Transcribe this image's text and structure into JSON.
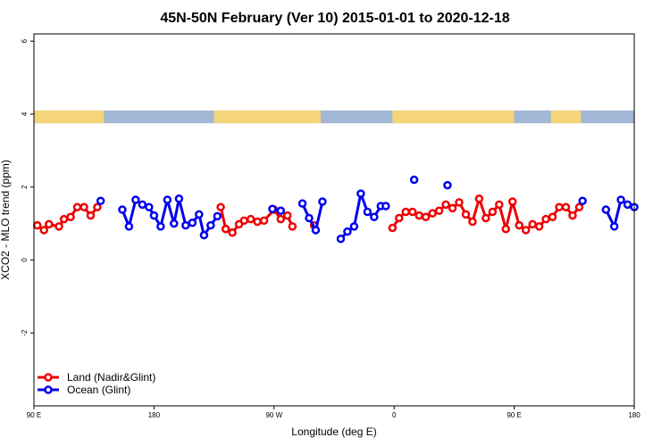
{
  "chart_data": {
    "type": "line",
    "title": "45N-50N February (Ver 10)   2015-01-01 to 2020-12-18",
    "xlabel": "Longitude (deg E)",
    "ylabel": "XCO2 - MLO trend (ppm)",
    "xlim": [
      90,
      450
    ],
    "ylim": [
      -4,
      6.2
    ],
    "x_ticks": [
      {
        "value": 90,
        "label": "90 E"
      },
      {
        "value": 162,
        "label": "180"
      },
      {
        "value": 234,
        "label": "90 W"
      },
      {
        "value": 306,
        "label": "0"
      },
      {
        "value": 378,
        "label": "90 E"
      },
      {
        "value": 450,
        "label": "180"
      }
    ],
    "y_ticks": [
      {
        "value": -2,
        "label": "-2"
      },
      {
        "value": 0,
        "label": "0"
      },
      {
        "value": 2,
        "label": "2"
      },
      {
        "value": 4,
        "label": "4"
      },
      {
        "value": 6,
        "label": "6"
      }
    ],
    "land_ocean_band": {
      "y_from": 3.75,
      "y_to": 4.1,
      "land_color": "#f5d57a",
      "ocean_color": "#a2b6d6",
      "land_ranges": [
        [
          90,
          132
        ],
        [
          198,
          262
        ],
        [
          305,
          378
        ],
        [
          400,
          418
        ]
      ]
    },
    "legend": {
      "position": "bottom-left",
      "entries": [
        {
          "label": "Land (Nadir&Glint)",
          "color": "#ee0000"
        },
        {
          "label": "Ocean (Glint)",
          "color": "#0000ee"
        }
      ]
    },
    "series": [
      {
        "name": "Land (Nadir&Glint)",
        "color": "#ee0000",
        "segments": [
          [
            [
              92,
              0.95
            ],
            [
              96,
              0.82
            ],
            [
              99,
              0.98
            ],
            [
              105,
              0.92
            ],
            [
              108,
              1.12
            ],
            [
              112,
              1.18
            ],
            [
              116,
              1.45
            ],
            [
              120,
              1.45
            ],
            [
              124,
              1.22
            ],
            [
              128,
              1.45
            ]
          ],
          [
            [
              202,
              1.45
            ],
            [
              205,
              0.85
            ],
            [
              209,
              0.75
            ],
            [
              213,
              0.98
            ],
            [
              216,
              1.08
            ],
            [
              220,
              1.12
            ],
            [
              224,
              1.05
            ],
            [
              228,
              1.08
            ],
            [
              234,
              1.38
            ],
            [
              238,
              1.12
            ],
            [
              242,
              1.22
            ],
            [
              245,
              0.92
            ]
          ],
          [
            [
              258,
              0.95
            ]
          ],
          [
            [
              305,
              0.88
            ],
            [
              309,
              1.15
            ],
            [
              313,
              1.32
            ],
            [
              317,
              1.32
            ],
            [
              321,
              1.22
            ],
            [
              325,
              1.18
            ],
            [
              329,
              1.28
            ],
            [
              333,
              1.35
            ],
            [
              337,
              1.52
            ],
            [
              341,
              1.42
            ],
            [
              345,
              1.58
            ],
            [
              349,
              1.25
            ],
            [
              353,
              1.05
            ],
            [
              357,
              1.68
            ],
            [
              361,
              1.15
            ],
            [
              365,
              1.32
            ],
            [
              369,
              1.52
            ],
            [
              373,
              0.85
            ],
            [
              377,
              1.6
            ],
            [
              381,
              0.95
            ],
            [
              385,
              0.82
            ],
            [
              389,
              0.98
            ],
            [
              393,
              0.92
            ],
            [
              397,
              1.12
            ],
            [
              401,
              1.18
            ],
            [
              405,
              1.45
            ],
            [
              409,
              1.45
            ],
            [
              413,
              1.22
            ],
            [
              417,
              1.45
            ]
          ]
        ]
      },
      {
        "name": "Ocean (Glint)",
        "color": "#0000ee",
        "segments": [
          [
            [
              130,
              1.62
            ]
          ],
          [
            [
              143,
              1.38
            ],
            [
              147,
              0.92
            ],
            [
              151,
              1.65
            ],
            [
              155,
              1.52
            ],
            [
              159,
              1.45
            ],
            [
              162,
              1.22
            ],
            [
              166,
              0.92
            ],
            [
              170,
              1.65
            ],
            [
              174,
              1.0
            ],
            [
              177,
              1.68
            ],
            [
              181,
              0.95
            ],
            [
              185,
              1.02
            ],
            [
              189,
              1.25
            ],
            [
              192,
              0.68
            ],
            [
              196,
              0.95
            ],
            [
              200,
              1.2
            ]
          ],
          [
            [
              233,
              1.4
            ],
            [
              238,
              1.35
            ]
          ],
          [
            [
              251,
              1.55
            ],
            [
              255,
              1.15
            ],
            [
              259,
              0.82
            ],
            [
              263,
              1.6
            ]
          ],
          [
            [
              274,
              0.58
            ],
            [
              278,
              0.78
            ],
            [
              282,
              0.92
            ],
            [
              286,
              1.82
            ],
            [
              290,
              1.32
            ],
            [
              294,
              1.18
            ],
            [
              298,
              1.48
            ]
          ],
          [
            [
              301,
              1.48
            ]
          ],
          [
            [
              318,
              2.2
            ]
          ],
          [
            [
              338,
              2.05
            ]
          ],
          [
            [
              419,
              1.62
            ]
          ],
          [
            [
              433,
              1.38
            ],
            [
              438,
              0.92
            ],
            [
              442,
              1.65
            ],
            [
              446,
              1.52
            ],
            [
              450,
              1.45
            ]
          ]
        ]
      }
    ]
  }
}
